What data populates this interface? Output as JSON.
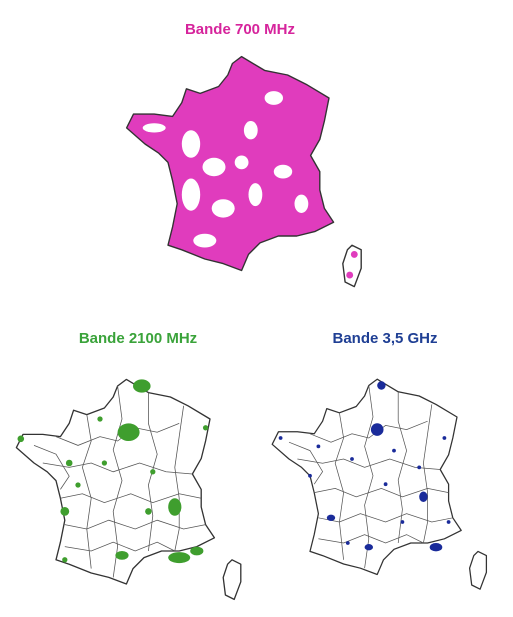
{
  "maps": [
    {
      "title": "Bande 700 MHz"
    },
    {
      "title": "Bande 2100 MHz"
    },
    {
      "title": "Bande 3,5 GHz"
    }
  ]
}
